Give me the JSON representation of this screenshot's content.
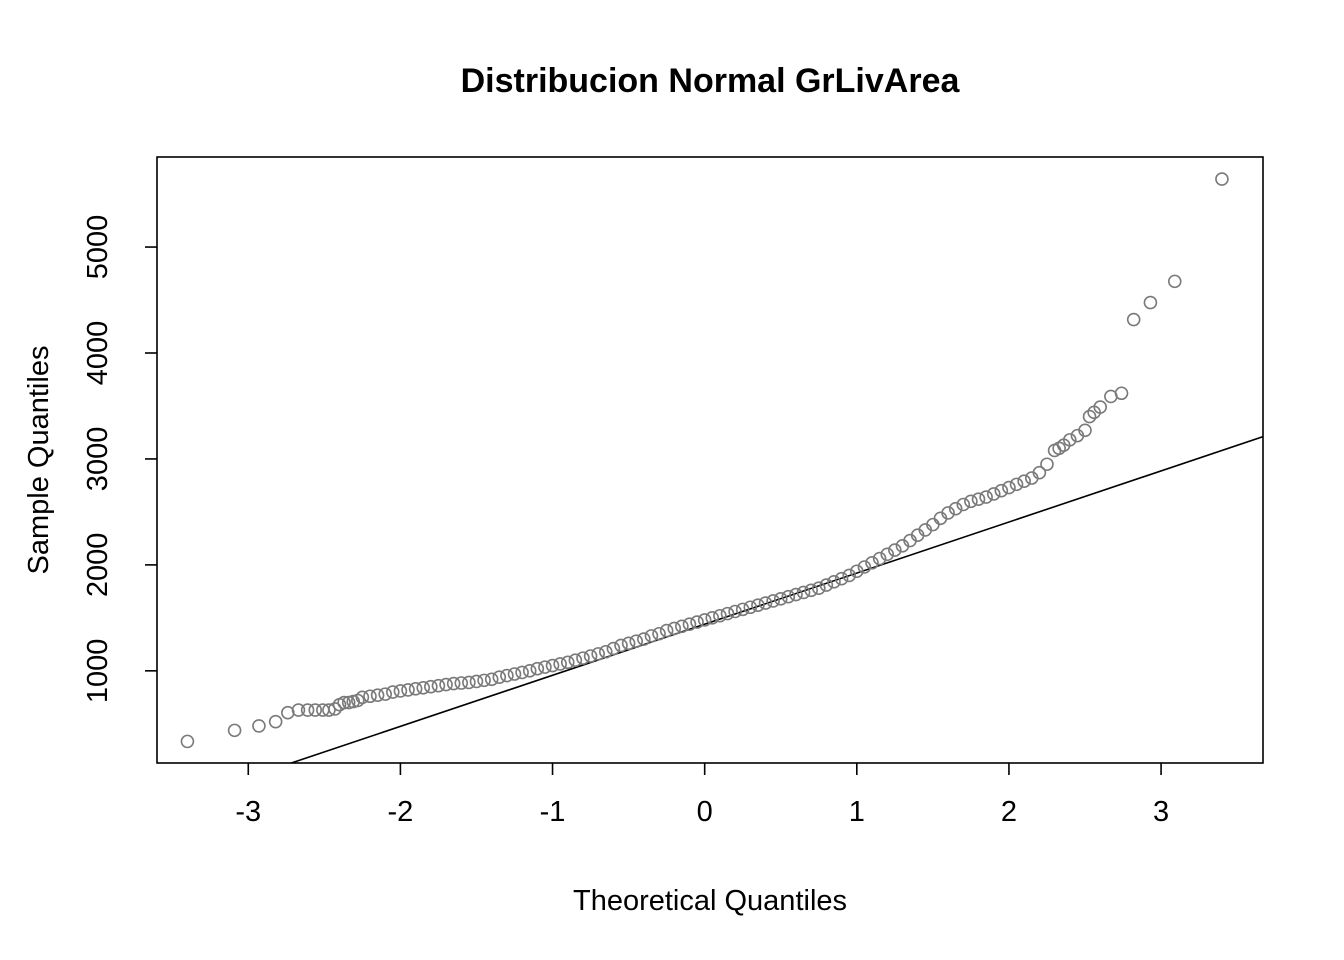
{
  "chart_data": {
    "type": "scatter",
    "title": "Distribucion Normal GrLivArea",
    "xlabel": "Theoretical Quantiles",
    "ylabel": "Sample Quantiles",
    "xlim": [
      -3.6,
      3.67
    ],
    "ylim": [
      130,
      5850
    ],
    "x_ticks": [
      -3,
      -2,
      -1,
      0,
      1,
      2,
      3
    ],
    "y_ticks": [
      1000,
      2000,
      3000,
      4000,
      5000
    ],
    "grid": false,
    "point_color": "#7a7a7a",
    "line_color": "#000000",
    "reference_line": {
      "x": [
        -2.8,
        3.67
      ],
      "y": [
        90,
        3210
      ]
    },
    "points": {
      "x": [
        -3.4,
        -3.09,
        -2.93,
        -2.82,
        -2.74,
        -2.67,
        -2.61,
        -2.56,
        -2.51,
        -2.47,
        -2.43,
        -2.4,
        -2.37,
        -2.34,
        -2.31,
        -2.28,
        -2.25,
        -2.2,
        -2.15,
        -2.1,
        -2.05,
        -2.0,
        -1.95,
        -1.9,
        -1.85,
        -1.8,
        -1.75,
        -1.7,
        -1.65,
        -1.6,
        -1.55,
        -1.5,
        -1.45,
        -1.4,
        -1.35,
        -1.3,
        -1.25,
        -1.2,
        -1.15,
        -1.1,
        -1.05,
        -1.0,
        -0.95,
        -0.9,
        -0.85,
        -0.8,
        -0.75,
        -0.7,
        -0.65,
        -0.6,
        -0.55,
        -0.5,
        -0.45,
        -0.4,
        -0.35,
        -0.3,
        -0.25,
        -0.2,
        -0.15,
        -0.1,
        -0.05,
        0.0,
        0.05,
        0.1,
        0.15,
        0.2,
        0.25,
        0.3,
        0.35,
        0.4,
        0.45,
        0.5,
        0.55,
        0.6,
        0.65,
        0.7,
        0.75,
        0.8,
        0.85,
        0.9,
        0.95,
        1.0,
        1.05,
        1.1,
        1.15,
        1.2,
        1.25,
        1.3,
        1.35,
        1.4,
        1.45,
        1.5,
        1.55,
        1.6,
        1.65,
        1.7,
        1.75,
        1.8,
        1.85,
        1.9,
        1.95,
        2.0,
        2.05,
        2.1,
        2.15,
        2.2,
        2.25,
        2.3,
        2.33,
        2.36,
        2.4,
        2.45,
        2.5,
        2.53,
        2.56,
        2.6,
        2.67,
        2.74,
        2.82,
        2.93,
        3.09,
        3.4
      ],
      "y": [
        334,
        438,
        480,
        520,
        605,
        630,
        630,
        630,
        630,
        630,
        640,
        680,
        700,
        700,
        710,
        720,
        750,
        760,
        770,
        780,
        800,
        810,
        820,
        830,
        840,
        850,
        860,
        870,
        880,
        885,
        890,
        900,
        910,
        920,
        940,
        955,
        970,
        985,
        1000,
        1020,
        1035,
        1050,
        1065,
        1080,
        1100,
        1120,
        1140,
        1160,
        1180,
        1210,
        1240,
        1260,
        1280,
        1300,
        1330,
        1350,
        1380,
        1400,
        1420,
        1440,
        1460,
        1480,
        1500,
        1520,
        1540,
        1560,
        1580,
        1600,
        1620,
        1640,
        1660,
        1680,
        1700,
        1720,
        1740,
        1760,
        1780,
        1810,
        1840,
        1870,
        1900,
        1940,
        1980,
        2020,
        2060,
        2100,
        2140,
        2180,
        2230,
        2280,
        2330,
        2380,
        2440,
        2490,
        2530,
        2570,
        2600,
        2620,
        2640,
        2670,
        2700,
        2730,
        2760,
        2790,
        2820,
        2870,
        2950,
        3080,
        3100,
        3130,
        3180,
        3220,
        3270,
        3400,
        3440,
        3490,
        3590,
        3620,
        4316,
        4476,
        4676,
        5642
      ]
    }
  }
}
